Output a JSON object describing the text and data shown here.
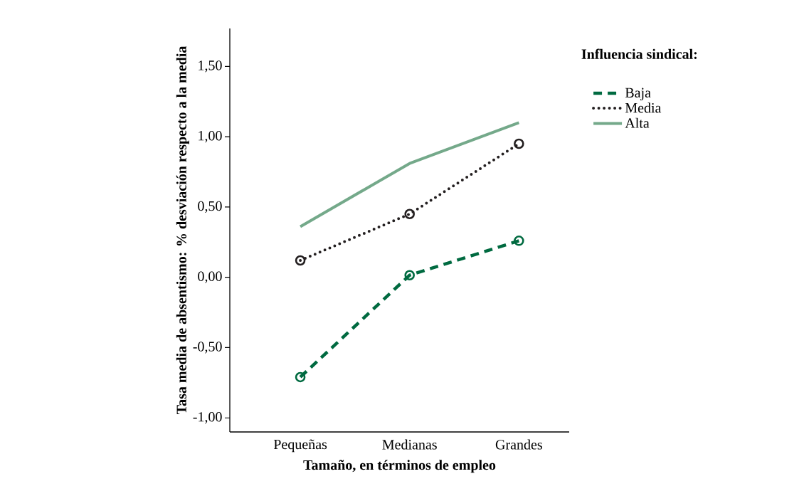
{
  "chart_data": {
    "type": "line",
    "xlabel": "Tamaño, en términos de empleo",
    "ylabel": "Tasa media de absentismo: % desviación respecto a la media",
    "legend_title": "Influencia sindical:",
    "categories": [
      "Pequeñas",
      "Medianas",
      "Grandes"
    ],
    "series": [
      {
        "name": "Baja",
        "color": "#006a40",
        "values": [
          -0.71,
          0.015,
          0.26
        ],
        "line_style": "dashed",
        "marker": "circle"
      },
      {
        "name": "Media",
        "color": "#231f20",
        "values": [
          0.12,
          0.45,
          0.95
        ],
        "line_style": "dotted",
        "marker": "circle"
      },
      {
        "name": "Alta",
        "color": "#74a98a",
        "values": [
          0.36,
          0.81,
          1.1
        ],
        "line_style": "solid",
        "marker": "none"
      }
    ],
    "ylim": [
      -1.1,
      1.77
    ],
    "yticks": [
      {
        "value": -1,
        "label": "-1,00"
      },
      {
        "value": -0.5,
        "label": "-0,50"
      },
      {
        "value": 0,
        "label": "0,00"
      },
      {
        "value": 0.5,
        "label": "0,50"
      },
      {
        "value": 1,
        "label": "1,00"
      },
      {
        "value": 1.5,
        "label": "1,50"
      }
    ],
    "grid": false,
    "legend": "top right"
  }
}
